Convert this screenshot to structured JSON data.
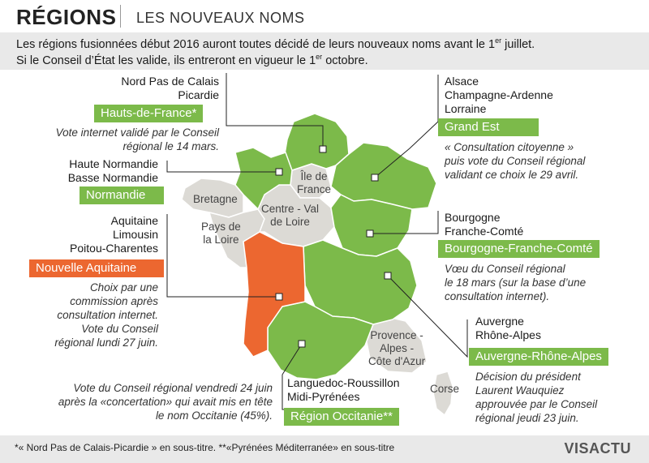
{
  "header": {
    "title": "RÉGIONS",
    "subtitle": "LES NOUVEAUX NOMS"
  },
  "intro": {
    "line1_a": "Les régions fusionnées début 2016 auront toutes décidé de leurs nouveaux noms avant le 1",
    "line1_sup": "er",
    "line1_b": " juillet.",
    "line2_a": "Si le Conseil d’État les valide, ils entreront en vigueur le 1",
    "line2_sup": "er",
    "line2_b": " octobre."
  },
  "map_labels": {
    "idf_1": "Île de",
    "idf_2": "France",
    "cvl_1": "Centre - Val",
    "cvl_2": "de Loire",
    "bretagne": "Bretagne",
    "pdl_1": "Pays de",
    "pdl_2": "la Loire",
    "paca_1": "Provence -",
    "paca_2": "Alpes -",
    "paca_3": "Côte d'Azur",
    "corse": "Corse"
  },
  "regions": {
    "hdf": {
      "old1": "Nord Pas de Calais",
      "old2": "Picardie",
      "new": "Hauts-de-France*",
      "note1": "Vote internet validé par le Conseil",
      "note2": "régional le 14 mars."
    },
    "ge": {
      "old1": "Alsace",
      "old2": "Champagne-Ardenne",
      "old3": "Lorraine",
      "new": "Grand Est",
      "note1": "« Consultation citoyenne »",
      "note2": "puis vote du Conseil régional",
      "note3": "validant ce choix le 29 avril."
    },
    "norm": {
      "old1": "Haute Normandie",
      "old2": "Basse Normandie",
      "new": "Normandie"
    },
    "bfc": {
      "old1": "Bourgogne",
      "old2": "Franche-Comté",
      "new": "Bourgogne-Franche-Comté",
      "note1": "Vœu du Conseil régional",
      "note2": "le 18 mars (sur la base d’une",
      "note3": "consultation internet)."
    },
    "na": {
      "old1": "Aquitaine",
      "old2": "Limousin",
      "old3": "Poitou-Charentes",
      "new": "Nouvelle Aquitaine",
      "note1": "Choix par une",
      "note2": "commission après",
      "note3": "consultation internet.",
      "note4": "Vote du Conseil",
      "note5": "régional lundi 27 juin."
    },
    "ara": {
      "old1": "Auvergne",
      "old2": "Rhône-Alpes",
      "new": "Auvergne-Rhône-Alpes",
      "note1": "Décision du président",
      "note2": "Laurent Wauquiez",
      "note3": "approuvée par le Conseil",
      "note4": "régional jeudi 23 juin."
    },
    "occ": {
      "old1": "Languedoc-Roussillon",
      "old2": "Midi-Pyrénées",
      "new": "Région Occitanie**",
      "note1": "Vote du Conseil régional vendredi 24 juin",
      "note2": "après la «concertation» qui avait mis en tête",
      "note3": "le nom Occitanie (45%)."
    }
  },
  "colors": {
    "green": "#7cba4a",
    "orange": "#ec6730",
    "grey": "#dcdad5"
  },
  "footer": {
    "note": "*« Nord Pas de Calais-Picardie » en sous-titre.  **«Pyrénées Méditerranée» en sous-titre",
    "brand": "VISACTU"
  }
}
